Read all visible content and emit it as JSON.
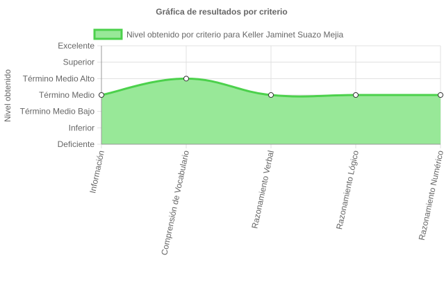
{
  "chart_data": {
    "type": "line",
    "title": "Gráfica de resultados por criterio",
    "ylabel": "Nivel obtenido",
    "xlabel": "",
    "categories": [
      "Información",
      "Comprensión de Vocabulario",
      "Razonamiento Verbal",
      "Razonamiento Lógico",
      "Razonamiento Numérico"
    ],
    "y_levels": [
      "Deficiente",
      "Inferior",
      "Término Medio Bajo",
      "Término Medio",
      "Término Medio Alto",
      "Superior",
      "Excelente"
    ],
    "series": [
      {
        "name": "Nivel obtenido por criterio para Keller Jaminet Suazo Mejia",
        "values": [
          3,
          4,
          3,
          3,
          3
        ]
      }
    ],
    "ylim": [
      0,
      6
    ],
    "grid": true,
    "filled": true,
    "legend_position": "top",
    "colors": {
      "line": "#4cd14c",
      "fill": "#98e898",
      "point_fill": "#ffffff",
      "point_stroke": "#333333",
      "grid": "#e0e0e0",
      "axis": "#999999"
    }
  }
}
